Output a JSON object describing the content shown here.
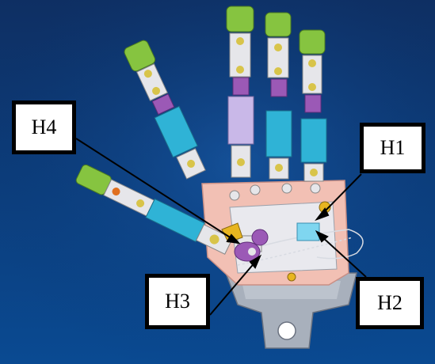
{
  "labels": {
    "h1": "H1",
    "h2": "H2",
    "h3": "H3",
    "h4": "H4"
  },
  "colors": {
    "background_top": "#0e2f63",
    "background_bottom": "#0a4a92",
    "palm": "#f2c0b4",
    "finger_white": "#e6e6ea",
    "finger_cyan": "#2fb3d6",
    "finger_purple": "#9b59b6",
    "finger_green": "#86c440",
    "joint_yellow": "#d8c44a",
    "wrist": "#a8b0bc"
  }
}
